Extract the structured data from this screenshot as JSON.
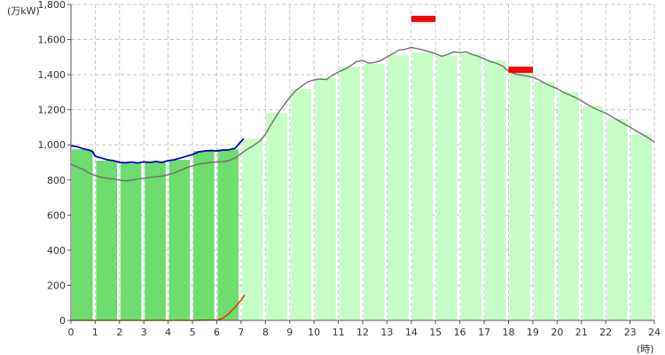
{
  "chart_data": {
    "type": "bar",
    "y_unit_label": "(万kW)",
    "x_unit_label": "(時)",
    "xlim": [
      0,
      24
    ],
    "ylim": [
      0,
      1800
    ],
    "x_ticks": [
      0,
      1,
      2,
      3,
      4,
      5,
      6,
      7,
      8,
      9,
      10,
      11,
      12,
      13,
      14,
      15,
      16,
      17,
      18,
      19,
      20,
      21,
      22,
      23,
      24
    ],
    "y_ticks": [
      0,
      200,
      400,
      600,
      800,
      1000,
      1200,
      1400,
      1600,
      1800
    ],
    "y_tick_labels": [
      "0",
      "200",
      "400",
      "600",
      "800",
      "1,000",
      "1,200",
      "1,400",
      "1,600",
      "1,800"
    ],
    "grid": true,
    "colors": {
      "actual_bar": "#6edc6e",
      "forecast_bar": "#c6fcc6",
      "actual_line": "#0000cc",
      "forecast_line": "#707070",
      "solar_line": "#e04000",
      "peak_marker": "#ff0000",
      "grid": "#c8c8c8",
      "axis": "#555555"
    },
    "bars": [
      {
        "hour": 0,
        "value": 975,
        "status": "actual"
      },
      {
        "hour": 1,
        "value": 910,
        "status": "actual"
      },
      {
        "hour": 2,
        "value": 895,
        "status": "actual"
      },
      {
        "hour": 3,
        "value": 900,
        "status": "actual"
      },
      {
        "hour": 4,
        "value": 915,
        "status": "actual"
      },
      {
        "hour": 5,
        "value": 965,
        "status": "actual"
      },
      {
        "hour": 6,
        "value": 975,
        "status": "actual"
      },
      {
        "hour": 7,
        "value": 1035,
        "status": "forecast"
      },
      {
        "hour": 8,
        "value": 1180,
        "status": "forecast"
      },
      {
        "hour": 9,
        "value": 1320,
        "status": "forecast"
      },
      {
        "hour": 10,
        "value": 1380,
        "status": "forecast"
      },
      {
        "hour": 11,
        "value": 1445,
        "status": "forecast"
      },
      {
        "hour": 12,
        "value": 1460,
        "status": "forecast"
      },
      {
        "hour": 13,
        "value": 1510,
        "status": "forecast"
      },
      {
        "hour": 14,
        "value": 1525,
        "status": "forecast"
      },
      {
        "hour": 15,
        "value": 1510,
        "status": "forecast"
      },
      {
        "hour": 16,
        "value": 1520,
        "status": "forecast"
      },
      {
        "hour": 17,
        "value": 1480,
        "status": "forecast"
      },
      {
        "hour": 18,
        "value": 1420,
        "status": "forecast"
      },
      {
        "hour": 19,
        "value": 1360,
        "status": "forecast"
      },
      {
        "hour": 20,
        "value": 1300,
        "status": "forecast"
      },
      {
        "hour": 21,
        "value": 1220,
        "status": "forecast"
      },
      {
        "hour": 22,
        "value": 1150,
        "status": "forecast"
      },
      {
        "hour": 23,
        "value": 1060,
        "status": "forecast"
      }
    ],
    "actual_line": [
      [
        0,
        995
      ],
      [
        0.25,
        990
      ],
      [
        0.5,
        978
      ],
      [
        0.75,
        970
      ],
      [
        0.9,
        960
      ],
      [
        1.0,
        935
      ],
      [
        1.25,
        925
      ],
      [
        1.5,
        915
      ],
      [
        1.75,
        910
      ],
      [
        2.0,
        900
      ],
      [
        2.25,
        898
      ],
      [
        2.5,
        902
      ],
      [
        2.75,
        897
      ],
      [
        3.0,
        903
      ],
      [
        3.25,
        900
      ],
      [
        3.5,
        905
      ],
      [
        3.75,
        900
      ],
      [
        4.0,
        910
      ],
      [
        4.25,
        915
      ],
      [
        4.5,
        925
      ],
      [
        4.75,
        935
      ],
      [
        5.0,
        945
      ],
      [
        5.25,
        960
      ],
      [
        5.5,
        965
      ],
      [
        5.75,
        968
      ],
      [
        6.0,
        965
      ],
      [
        6.25,
        970
      ],
      [
        6.5,
        972
      ],
      [
        6.75,
        980
      ],
      [
        7.0,
        1020
      ],
      [
        7.1,
        1035
      ]
    ],
    "forecast_line": [
      [
        0,
        890
      ],
      [
        0.25,
        875
      ],
      [
        0.5,
        860
      ],
      [
        0.75,
        840
      ],
      [
        1.0,
        825
      ],
      [
        1.25,
        815
      ],
      [
        1.5,
        810
      ],
      [
        1.75,
        805
      ],
      [
        2.0,
        800
      ],
      [
        2.25,
        795
      ],
      [
        2.5,
        800
      ],
      [
        2.75,
        805
      ],
      [
        3.0,
        810
      ],
      [
        3.25,
        815
      ],
      [
        3.5,
        818
      ],
      [
        3.75,
        822
      ],
      [
        4.0,
        830
      ],
      [
        4.25,
        840
      ],
      [
        4.5,
        855
      ],
      [
        4.75,
        870
      ],
      [
        5.0,
        880
      ],
      [
        5.25,
        890
      ],
      [
        5.5,
        895
      ],
      [
        5.75,
        900
      ],
      [
        6.0,
        902
      ],
      [
        6.25,
        905
      ],
      [
        6.5,
        910
      ],
      [
        6.75,
        925
      ],
      [
        7.0,
        950
      ],
      [
        7.25,
        975
      ],
      [
        7.5,
        995
      ],
      [
        7.75,
        1020
      ],
      [
        8.0,
        1060
      ],
      [
        8.25,
        1120
      ],
      [
        8.5,
        1175
      ],
      [
        8.75,
        1225
      ],
      [
        9.0,
        1270
      ],
      [
        9.25,
        1310
      ],
      [
        9.5,
        1335
      ],
      [
        9.75,
        1360
      ],
      [
        10.0,
        1370
      ],
      [
        10.25,
        1375
      ],
      [
        10.5,
        1372
      ],
      [
        10.75,
        1395
      ],
      [
        11.0,
        1415
      ],
      [
        11.25,
        1430
      ],
      [
        11.5,
        1450
      ],
      [
        11.75,
        1475
      ],
      [
        12.0,
        1480
      ],
      [
        12.25,
        1465
      ],
      [
        12.5,
        1470
      ],
      [
        12.75,
        1480
      ],
      [
        13.0,
        1500
      ],
      [
        13.25,
        1520
      ],
      [
        13.5,
        1540
      ],
      [
        13.75,
        1545
      ],
      [
        14.0,
        1555
      ],
      [
        14.25,
        1548
      ],
      [
        14.5,
        1540
      ],
      [
        14.75,
        1530
      ],
      [
        15.0,
        1520
      ],
      [
        15.25,
        1505
      ],
      [
        15.5,
        1515
      ],
      [
        15.75,
        1530
      ],
      [
        16.0,
        1525
      ],
      [
        16.25,
        1530
      ],
      [
        16.5,
        1515
      ],
      [
        16.75,
        1505
      ],
      [
        17.0,
        1490
      ],
      [
        17.25,
        1475
      ],
      [
        17.5,
        1465
      ],
      [
        17.75,
        1450
      ],
      [
        18.0,
        1420
      ],
      [
        18.25,
        1405
      ],
      [
        18.5,
        1398
      ],
      [
        18.75,
        1392
      ],
      [
        19.0,
        1385
      ],
      [
        19.25,
        1370
      ],
      [
        19.5,
        1350
      ],
      [
        19.75,
        1335
      ],
      [
        20.0,
        1320
      ],
      [
        20.25,
        1300
      ],
      [
        20.5,
        1285
      ],
      [
        20.75,
        1270
      ],
      [
        21.0,
        1250
      ],
      [
        21.25,
        1230
      ],
      [
        21.5,
        1210
      ],
      [
        21.75,
        1195
      ],
      [
        22.0,
        1180
      ],
      [
        22.25,
        1160
      ],
      [
        22.5,
        1140
      ],
      [
        22.75,
        1120
      ],
      [
        23.0,
        1100
      ],
      [
        23.25,
        1080
      ],
      [
        23.5,
        1060
      ],
      [
        23.75,
        1040
      ],
      [
        24.0,
        1015
      ]
    ],
    "solar_line": [
      [
        0,
        0
      ],
      [
        1,
        0
      ],
      [
        2,
        0
      ],
      [
        3,
        0
      ],
      [
        4,
        0
      ],
      [
        5,
        0
      ],
      [
        6.0,
        2
      ],
      [
        6.25,
        12
      ],
      [
        6.5,
        38
      ],
      [
        6.75,
        75
      ],
      [
        7.0,
        115
      ],
      [
        7.15,
        145
      ]
    ],
    "peak_markers": [
      {
        "x_start": 14.0,
        "x_end": 15.0,
        "value": 1715
      },
      {
        "x_start": 18.0,
        "x_end": 19.0,
        "value": 1425
      }
    ]
  }
}
